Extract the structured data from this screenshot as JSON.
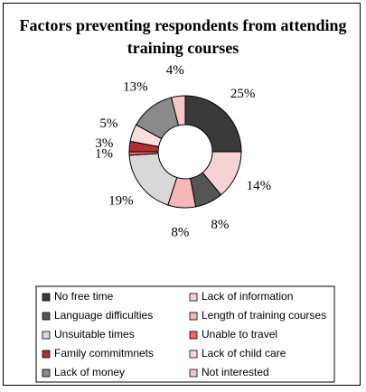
{
  "chart_data": {
    "type": "donut",
    "title": "Factors preventing respondents from attending training courses",
    "categories": [
      "No free time",
      "Lack of information",
      "Language difficulties",
      "Length of training courses",
      "Unsuitable times",
      "Unable to travel",
      "Family commitmnets",
      "Lack of child care",
      "Lack of money",
      "Not interested"
    ],
    "values": [
      25,
      14,
      8,
      8,
      19,
      1,
      3,
      5,
      13,
      4
    ],
    "value_labels": [
      "25%",
      "14%",
      "8%",
      "8%",
      "19%",
      "1%",
      "3%",
      "5%",
      "13%",
      "4%"
    ],
    "colors": [
      "#3a3a3a",
      "#f6d3d3",
      "#555555",
      "#f4b8b8",
      "#d8d8d8",
      "#ee6666",
      "#b03030",
      "#f9dede",
      "#8a8a8a",
      "#f7c6c6"
    ]
  }
}
